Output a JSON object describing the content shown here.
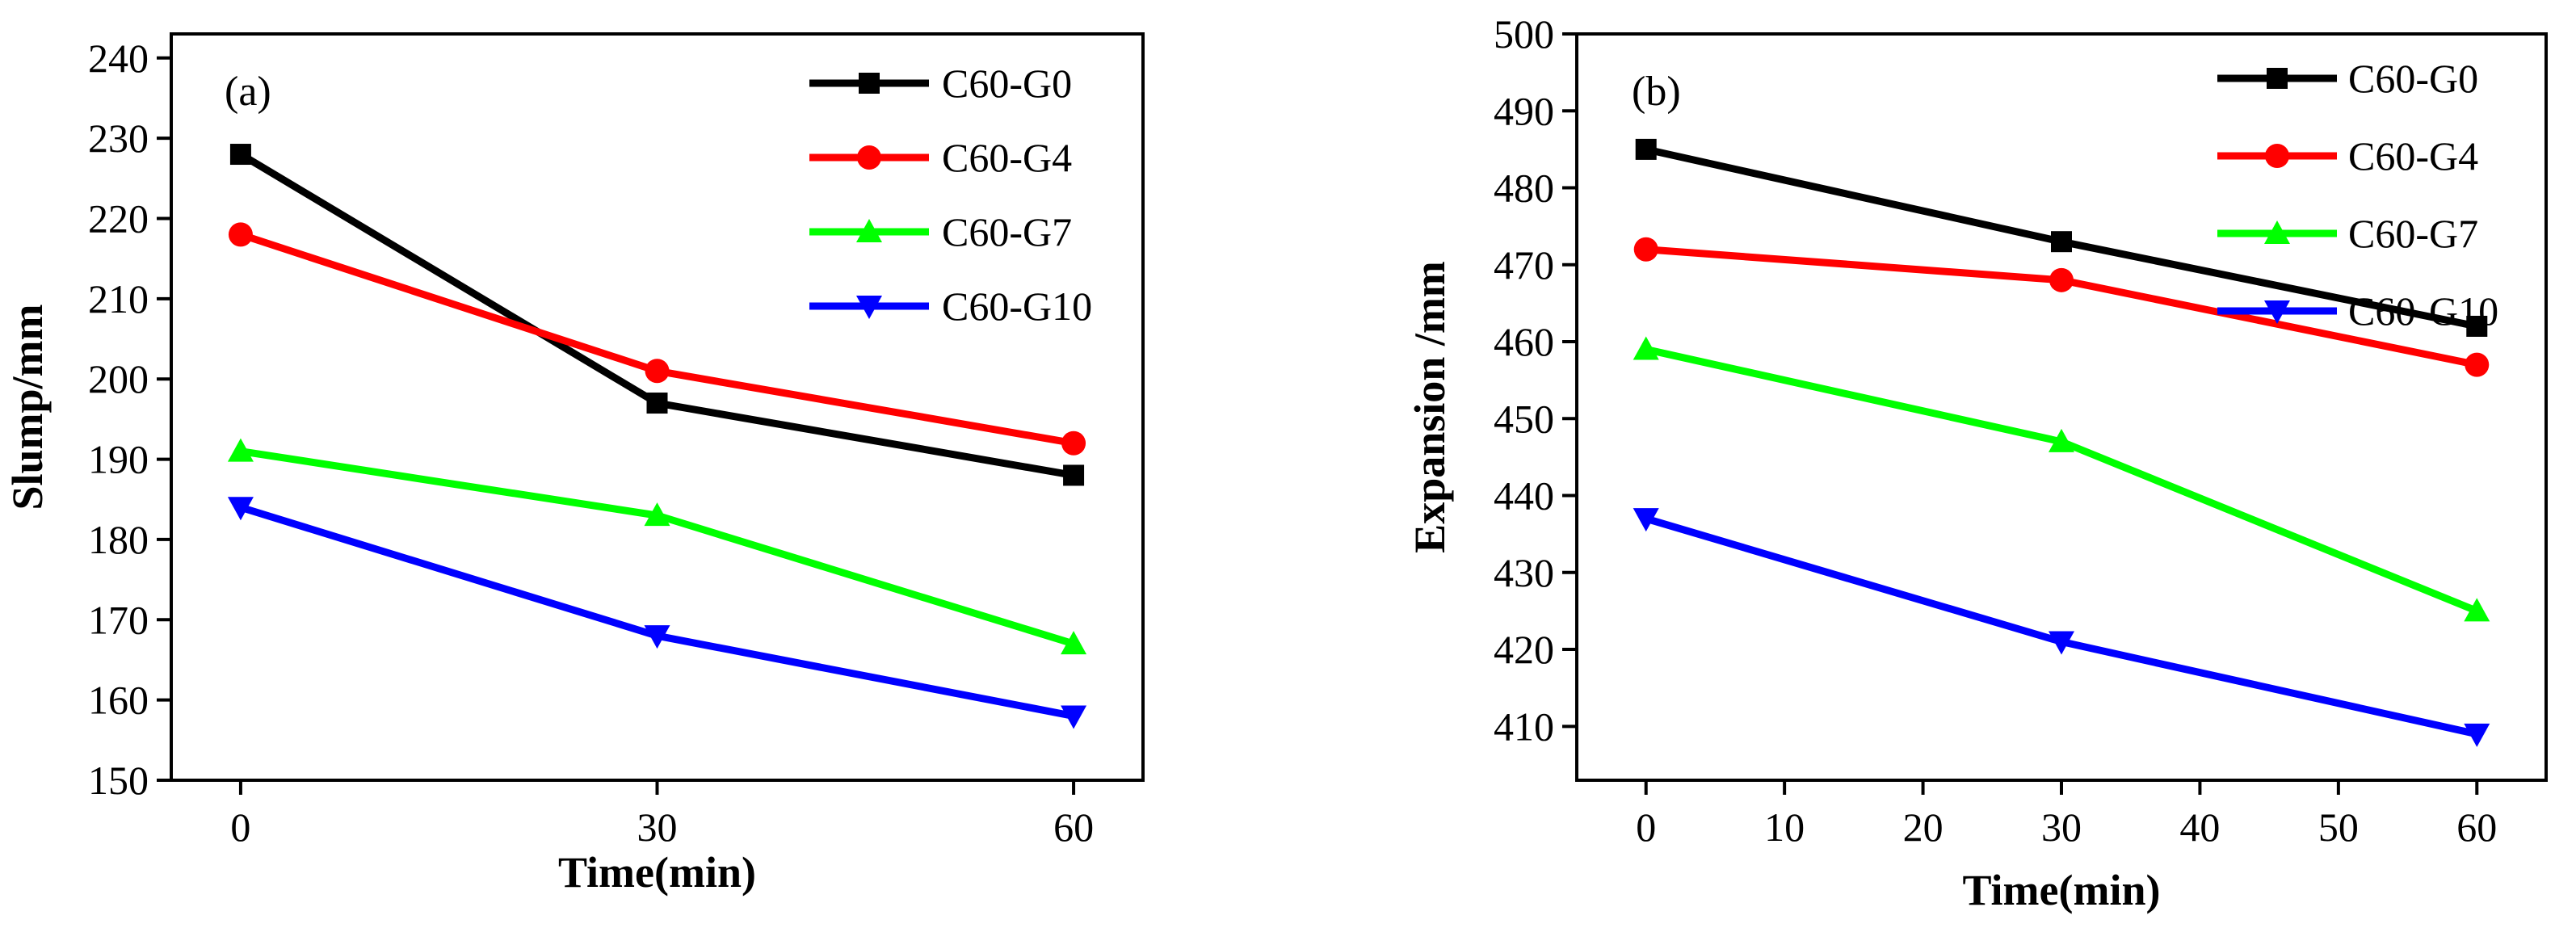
{
  "chart_data": [
    {
      "type": "line",
      "panel_label": "(a)",
      "title": "",
      "xlabel": "Time(min)",
      "ylabel": "Slump/mm",
      "x": [
        0,
        30,
        60
      ],
      "xlim": [
        -5,
        65
      ],
      "xticks": [
        0,
        30,
        60
      ],
      "ylim": [
        150,
        243
      ],
      "yticks": [
        150,
        160,
        170,
        180,
        190,
        200,
        210,
        220,
        230,
        240
      ],
      "grid": false,
      "legend_position": "top-right",
      "series": [
        {
          "name": "C60-G0",
          "values": [
            228,
            197,
            188
          ],
          "color": "#000000",
          "marker": "square"
        },
        {
          "name": "C60-G4",
          "values": [
            218,
            201,
            192
          ],
          "color": "#ff0000",
          "marker": "circle"
        },
        {
          "name": "C60-G7",
          "values": [
            191,
            183,
            167
          ],
          "color": "#00ff00",
          "marker": "triangle-up"
        },
        {
          "name": "C60-G10",
          "values": [
            184,
            168,
            158
          ],
          "color": "#0000ff",
          "marker": "triangle-down"
        }
      ]
    },
    {
      "type": "line",
      "panel_label": "(b)",
      "title": "",
      "xlabel": "Time(min)",
      "ylabel": "Expansion /mm",
      "x": [
        0,
        30,
        60
      ],
      "xlim": [
        -5,
        65
      ],
      "xticks": [
        0,
        10,
        20,
        30,
        40,
        50,
        60
      ],
      "ylim": [
        403,
        500
      ],
      "yticks": [
        410,
        420,
        430,
        440,
        450,
        460,
        470,
        480,
        490,
        500
      ],
      "grid": false,
      "legend_position": "top-right",
      "series": [
        {
          "name": "C60-G0",
          "values": [
            485,
            473,
            462
          ],
          "color": "#000000",
          "marker": "square"
        },
        {
          "name": "C60-G4",
          "values": [
            472,
            468,
            457
          ],
          "color": "#ff0000",
          "marker": "circle"
        },
        {
          "name": "C60-G7",
          "values": [
            459,
            447,
            425
          ],
          "color": "#00ff00",
          "marker": "triangle-up"
        },
        {
          "name": "C60-G10",
          "values": [
            437,
            421,
            409
          ],
          "color": "#0000ff",
          "marker": "triangle-down"
        }
      ]
    }
  ]
}
